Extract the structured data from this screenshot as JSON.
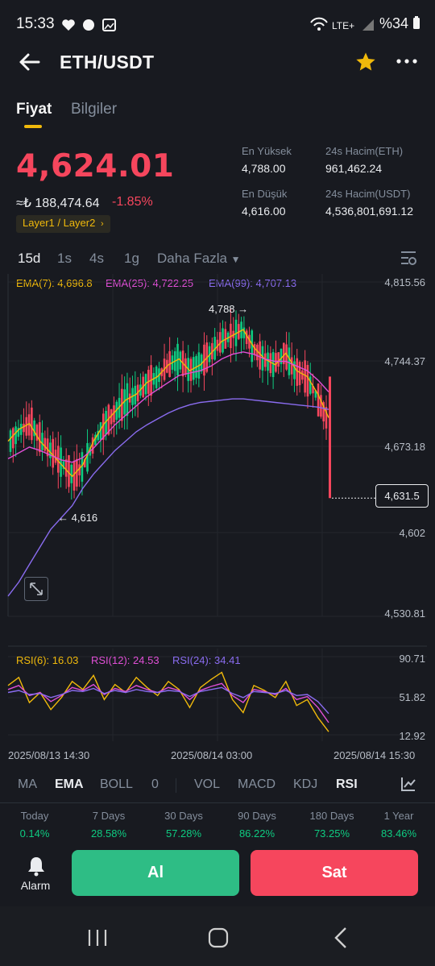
{
  "status_bar": {
    "time": "15:33",
    "battery": "%34"
  },
  "header": {
    "title": "ETH/USDT"
  },
  "tabs": [
    {
      "label": "Fiyat"
    },
    {
      "label": "Bilgiler"
    }
  ],
  "ticker": {
    "last_price": "4,624.01",
    "fiat_value": "≈₺ 188,474.64",
    "change": "-1.85%",
    "tag": "Layer1 / Layer2",
    "high_label": "En Yüksek",
    "high_value": "4,788.00",
    "low_label": "En Düşük",
    "low_value": "4,616.00",
    "vol_eth_label": "24s Hacim(ETH)",
    "vol_eth_value": "961,462.24",
    "vol_usdt_label": "24s Hacim(USDT)",
    "vol_usdt_value": "4,536,801,691.12"
  },
  "intervals": {
    "items": [
      "15d",
      "1s",
      "4s",
      "1g"
    ],
    "more": "Daha Fazla",
    "active": "15d"
  },
  "legend": {
    "ema7": "EMA(7): 4,696.8",
    "ema25": "EMA(25): 4,722.25",
    "ema99": "EMA(99): 4,707.13",
    "rsi6": "RSI(6): 16.03",
    "rsi12": "RSI(12): 24.53",
    "rsi24": "RSI(24): 34.41"
  },
  "colors": {
    "up": "#0ecb81",
    "down": "#f6465d",
    "ema7": "#f0b90b",
    "ema25": "#e04fd6",
    "ema99": "#8a6cf0",
    "accent": "#f0b90b"
  },
  "chart_data": {
    "type": "line",
    "price_axis": {
      "ticks": [
        "4,815.56",
        "4,744.37",
        "4,673.18",
        "4,602",
        "4,530.81"
      ],
      "ylim": [
        4530.81,
        4815.56
      ]
    },
    "rsi_axis": {
      "ticks": [
        "90.71",
        "51.82",
        "12.92"
      ],
      "ylim": [
        12.92,
        90.71
      ]
    },
    "x_labels": [
      "2025/08/13 14:30",
      "2025/08/14 03:00",
      "2025/08/14 15:30"
    ],
    "annotations": {
      "high": "4,788",
      "low": "4,616",
      "last": "4,631.5"
    },
    "series": [
      {
        "name": "EMA(7)",
        "values": [
          4680,
          4690,
          4695,
          4680,
          4670,
          4660,
          4650,
          4660,
          4680,
          4695,
          4705,
          4715,
          4720,
          4730,
          4735,
          4745,
          4750,
          4740,
          4745,
          4755,
          4765,
          4770,
          4775,
          4760,
          4750,
          4745,
          4755,
          4740,
          4735,
          4720,
          4700
        ]
      },
      {
        "name": "EMA(25)",
        "values": [
          4665,
          4670,
          4675,
          4672,
          4668,
          4664,
          4662,
          4666,
          4674,
          4684,
          4694,
          4702,
          4710,
          4718,
          4724,
          4730,
          4736,
          4738,
          4740,
          4744,
          4750,
          4754,
          4756,
          4754,
          4750,
          4748,
          4748,
          4744,
          4740,
          4732,
          4722
        ]
      },
      {
        "name": "EMA(99)",
        "values": [
          4548,
          4560,
          4575,
          4590,
          4605,
          4615,
          4625,
          4640,
          4652,
          4662,
          4672,
          4680,
          4688,
          4694,
          4699,
          4704,
          4708,
          4711,
          4713,
          4714,
          4715,
          4716,
          4716,
          4715,
          4714,
          4713,
          4712,
          4711,
          4710,
          4709,
          4707
        ]
      }
    ],
    "rsi_series": [
      {
        "name": "RSI(6)",
        "values": [
          62,
          70,
          45,
          55,
          38,
          50,
          66,
          58,
          72,
          48,
          63,
          55,
          70,
          60,
          52,
          66,
          58,
          40,
          60,
          68,
          75,
          48,
          35,
          62,
          57,
          50,
          66,
          42,
          48,
          30,
          16
        ]
      },
      {
        "name": "RSI(12)",
        "values": [
          58,
          62,
          52,
          55,
          46,
          52,
          60,
          57,
          63,
          53,
          59,
          56,
          62,
          58,
          55,
          60,
          57,
          48,
          57,
          61,
          64,
          52,
          45,
          58,
          56,
          53,
          59,
          48,
          51,
          40,
          25
        ]
      },
      {
        "name": "RSI(24)",
        "values": [
          55,
          57,
          53,
          54,
          50,
          53,
          57,
          56,
          59,
          54,
          57,
          55,
          58,
          56,
          55,
          57,
          56,
          51,
          56,
          58,
          60,
          54,
          50,
          56,
          55,
          54,
          57,
          52,
          53,
          46,
          34
        ]
      }
    ]
  },
  "indicators": {
    "items": [
      "MA",
      "EMA",
      "BOLL",
      "0",
      "VOL",
      "MACD",
      "KDJ",
      "RSI"
    ]
  },
  "performance": [
    {
      "label": "Today",
      "value": "0.14%"
    },
    {
      "label": "7 Days",
      "value": "28.58%"
    },
    {
      "label": "30 Days",
      "value": "57.28%"
    },
    {
      "label": "90 Days",
      "value": "86.22%"
    },
    {
      "label": "180 Days",
      "value": "73.25%"
    },
    {
      "label": "1 Year",
      "value": "83.46%"
    }
  ],
  "actions": {
    "alarm": "Alarm",
    "buy": "Al",
    "sell": "Sat"
  }
}
